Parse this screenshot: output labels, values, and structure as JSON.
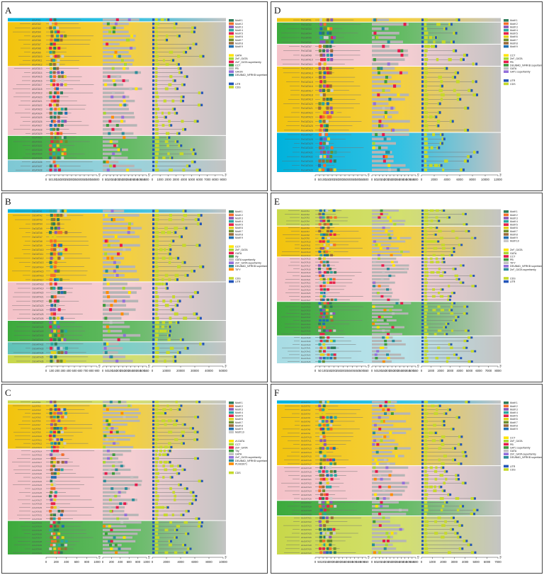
{
  "figure": {
    "panels": [
      {
        "letter": "A",
        "groups": [
          {
            "color": "#00b2dc",
            "rows": 1
          },
          {
            "color": "#f2c40e",
            "rows": 11
          },
          {
            "color": "#f4c2c8",
            "rows": 17
          },
          {
            "color": "#3caa3c",
            "rows": 6
          },
          {
            "color": "#7ec8d4",
            "rows": 3
          }
        ],
        "gene_prefix": "AtGATA",
        "axes": [
          {
            "ticks": [
              "0",
              "50",
              "100",
              "150",
              "200",
              "250",
              "300",
              "350",
              "400",
              "450",
              "500",
              "550",
              "600"
            ],
            "label": "5'"
          },
          {
            "ticks": [
              "0",
              "50",
              "100",
              "150",
              "200",
              "250",
              "300",
              "350",
              "400",
              "450",
              "500",
              "550",
              "600"
            ],
            "label": "5'"
          },
          {
            "ticks": [
              "0",
              "1000",
              "2000",
              "3000",
              "4000",
              "5000",
              "6000",
              "7000",
              "8000",
              "9000"
            ],
            "label": "3'"
          }
        ],
        "legend_motifs": [
          "Motif 1",
          "Motif 2",
          "Motif 3",
          "Motif 4",
          "Motif 5",
          "Motif 6",
          "Motif 7",
          "Motif 8",
          "Motif 9"
        ],
        "legend_domains": [
          "GATA",
          "ZnF_GATA",
          "ZnF_GATA superfamily",
          "CCT",
          "PB",
          "GAGN",
          "DEUBAD_NFRKB superfamily"
        ],
        "legend_struct": [
          "UTR",
          "CDS"
        ]
      },
      {
        "letter": "B",
        "groups": [
          {
            "color": "#00b2dc",
            "rows": 1
          },
          {
            "color": "#f2c40e",
            "rows": 16
          },
          {
            "color": "#f4c2c8",
            "rows": 9
          },
          {
            "color": "#3caa3c",
            "rows": 5
          },
          {
            "color": "#5fc2b8",
            "rows": 3
          },
          {
            "color": "#c8d84a",
            "rows": 2
          }
        ],
        "gene_prefix": "OsGATA",
        "axes": [
          {
            "ticks": [
              "0",
              "100",
              "200",
              "300",
              "400",
              "500",
              "600",
              "700",
              "800",
              "900"
            ],
            "label": "5'"
          },
          {
            "ticks": [
              "0",
              "50",
              "100",
              "150",
              "200",
              "250",
              "300",
              "350",
              "400",
              "450",
              "500",
              "550"
            ],
            "label": "5'"
          },
          {
            "ticks": [
              "0",
              "10000",
              "20000",
              "30000",
              "40000",
              "50000"
            ],
            "label": "3'"
          }
        ],
        "legend_motifs": [
          "Motif 1",
          "Motif 2",
          "Motif 3",
          "Motif 4",
          "Motif 5",
          "Motif 6",
          "Motif 7",
          "Motif 8",
          "Motif 9"
        ],
        "legend_domains": [
          "CCT",
          "ZnF_GATA",
          "GATA",
          "tify",
          "GATA superfamily",
          "ZnF_GATA superfamily",
          "DEUBAD_NFRKB superfamily",
          "TIFY"
        ],
        "legend_struct": [
          "CDS",
          "UTR"
        ]
      },
      {
        "letter": "C",
        "groups": [
          {
            "color": "#c8d84a",
            "rows": 1
          },
          {
            "color": "#f2c40e",
            "rows": 12
          },
          {
            "color": "#f4c2c8",
            "rows": 19
          },
          {
            "color": "#3caa3c",
            "rows": 9
          }
        ],
        "gene_prefix": "AcGATA",
        "axes": [
          {
            "ticks": [
              "0",
              "200",
              "400",
              "600",
              "800",
              "1000"
            ],
            "label": "5'"
          },
          {
            "ticks": [
              "0",
              "200",
              "400",
              "600",
              "800",
              "1000"
            ],
            "label": "5'"
          },
          {
            "ticks": [
              "0",
              "2000",
              "4000",
              "6000",
              "8000",
              "10000"
            ],
            "label": "3'"
          }
        ],
        "legend_motifs": [
          "Motif 1",
          "Motif 2",
          "Motif 3",
          "Motif 4",
          "Motif 5",
          "Motif 6",
          "Motif 7",
          "Motif 8",
          "Motif 9",
          "Motif 10"
        ],
        "legend_domains": [
          "zf-GATA",
          "CCT",
          "ZnF_GATA",
          "Tify",
          "GATA",
          "ZnF_GATA superfamily",
          "DEUBAD_NFRKB superfamily",
          "PLN03071"
        ],
        "legend_struct": [
          "CDS"
        ]
      },
      {
        "letter": "D",
        "groups": [
          {
            "color": "#f2c40e",
            "rows": 1
          },
          {
            "color": "#3caa3c",
            "rows": 5
          },
          {
            "color": "#f4c2c8",
            "rows": 5
          },
          {
            "color": "#f2c40e",
            "rows": 15
          },
          {
            "color": "#00b2dc",
            "rows": 9
          }
        ],
        "gene_prefix": "PeGATA",
        "axes": [
          {
            "ticks": [
              "0",
              "50",
              "100",
              "150",
              "200",
              "250",
              "300",
              "350",
              "400",
              "450",
              "500",
              "550",
              "600"
            ],
            "label": "5'"
          },
          {
            "ticks": [
              "0",
              "50",
              "100",
              "150",
              "200",
              "250",
              "300",
              "350",
              "400",
              "450",
              "500",
              "550",
              "600"
            ],
            "label": "5'"
          },
          {
            "ticks": [
              "0",
              "2000",
              "4000",
              "6000",
              "8000",
              "10000",
              "12000"
            ],
            "label": "3'"
          }
        ],
        "legend_motifs": [
          "Motif 1",
          "Motif 2",
          "Motif 3",
          "Motif 4",
          "Motif 5",
          "Motif 6",
          "Motif 7",
          "Motif 8",
          "Motif 9"
        ],
        "legend_domains": [
          "CCT",
          "ZnF_GATA",
          "PB",
          "DEUBAD_NFRKB superfamily",
          "GATA",
          "GAT1 superfamily"
        ],
        "legend_struct": [
          "UTR",
          "CDS"
        ]
      },
      {
        "letter": "E",
        "groups": [
          {
            "color": "#c8d84a",
            "rows": 5
          },
          {
            "color": "#f2c40e",
            "rows": 9
          },
          {
            "color": "#f4c2c8",
            "rows": 13
          },
          {
            "color": "#3caa3c",
            "rows": 10
          },
          {
            "color": "#a8dce4",
            "rows": 8
          }
        ],
        "gene_prefix": "MaGATA",
        "axes": [
          {
            "ticks": [
              "0",
              "50",
              "100",
              "150",
              "200",
              "250",
              "300",
              "350",
              "400",
              "450",
              "500",
              "550"
            ],
            "label": "5'"
          },
          {
            "ticks": [
              "0",
              "50",
              "100",
              "150",
              "200",
              "250",
              "300",
              "350",
              "400",
              "450",
              "500",
              "550"
            ],
            "label": "5'"
          },
          {
            "ticks": [
              "0",
              "1000",
              "2000",
              "3000",
              "4000",
              "5000",
              "6000",
              "7000",
              "8000"
            ],
            "label": "3'"
          }
        ],
        "legend_motifs": [
          "Motif 1",
          "Motif 2",
          "Motif 3",
          "Motif 4",
          "Motif 5",
          "Motif 6",
          "Motif 7",
          "Motif 8",
          "Motif 9",
          "Motif 10"
        ],
        "legend_domains": [
          "ZnF_GATA",
          "GATA",
          "CCT",
          "PB",
          "TIFY",
          "DEUBAD_NFRKB superfamily",
          "ZnF_GATA superfamily"
        ],
        "legend_struct": [
          "CDS",
          "UTR"
        ]
      },
      {
        "letter": "F",
        "groups": [
          {
            "color": "#00b2dc",
            "rows": 1
          },
          {
            "color": "#f2c40e",
            "rows": 16
          },
          {
            "color": "#f4c2c8",
            "rows": 9
          },
          {
            "color": "#3caa3c",
            "rows": 4
          },
          {
            "color": "#c8d84a",
            "rows": 10
          }
        ],
        "gene_prefix": "HbGATA",
        "axes": [
          {
            "ticks": [
              "0",
              "50",
              "100",
              "150",
              "200",
              "250",
              "300",
              "350",
              "400",
              "450",
              "500",
              "550",
              "600",
              "650"
            ],
            "label": "5'"
          },
          {
            "ticks": [
              "0",
              "50",
              "100",
              "150",
              "200",
              "250",
              "300",
              "350",
              "400",
              "450",
              "500",
              "550",
              "600"
            ],
            "label": "5'"
          },
          {
            "ticks": [
              "0",
              "1000",
              "2000",
              "3000",
              "4000",
              "5000",
              "6000",
              "7000"
            ],
            "label": "3'"
          }
        ],
        "legend_motifs": [
          "Motif 1",
          "Motif 2",
          "Motif 3",
          "Motif 4",
          "Motif 5",
          "Motif 6",
          "Motif 7",
          "Motif 8",
          "Motif 9"
        ],
        "legend_domains": [
          "CCT",
          "ZnF_GATA",
          "PB",
          "GAT1 superfamily",
          "GATA",
          "ZnF_GATA superfamily",
          "DEUBAD_NFRKB superfamily"
        ],
        "legend_struct": [
          "UTR",
          "CDS"
        ]
      }
    ],
    "colors": {
      "motifs": [
        "#2e7d5b",
        "#f46d2a",
        "#8a57b8",
        "#2aa7a0",
        "#e6234a",
        "#e2d21a",
        "#6d8f2f",
        "#9b6b3a",
        "#1f6fb2",
        "#c8c8c8"
      ],
      "domains": [
        "#ffe400",
        "#a6d832",
        "#e6194b",
        "#3c9b3c",
        "#c0c0c0",
        "#9370db",
        "#2c8c99",
        "#ff8c00"
      ],
      "utr": "#2456b8",
      "cds": "#c5d92a",
      "bar": "#b5b5b5",
      "line": "#777777"
    }
  }
}
